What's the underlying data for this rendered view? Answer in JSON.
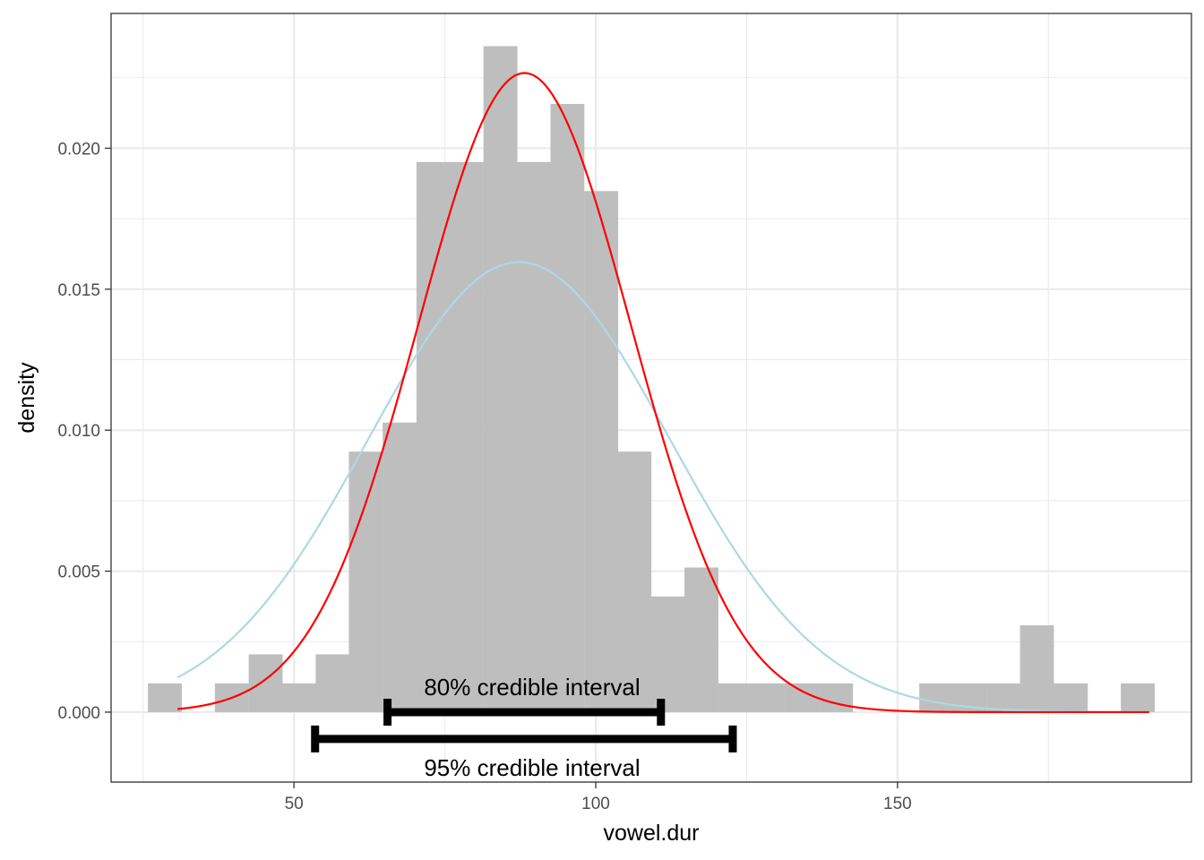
{
  "chart_data": {
    "type": "bar",
    "xlabel": "vowel.dur",
    "ylabel": "density",
    "xlim": [
      19.7,
      198.7
    ],
    "ylim": [
      -0.00248,
      0.02478
    ],
    "x_ticks": [
      50,
      100,
      150
    ],
    "x_tick_labels": [
      "50",
      "100",
      "150"
    ],
    "x_minor_ticks": [
      25,
      75,
      125,
      175
    ],
    "y_ticks": [
      0.0,
      0.005,
      0.01,
      0.015,
      0.02
    ],
    "y_tick_labels": [
      "0.000",
      "0.005",
      "0.010",
      "0.015",
      "0.020"
    ],
    "y_minor_ticks": [
      -0.0025,
      0.0025,
      0.0075,
      0.0125,
      0.0175,
      0.0225
    ],
    "grid": true,
    "histogram": {
      "bin_width": 5.56,
      "bin_starts": [
        25.8,
        31.4,
        36.9,
        42.5,
        48.0,
        53.6,
        59.1,
        64.7,
        70.3,
        75.8,
        81.4,
        86.9,
        92.5,
        98.1,
        103.6,
        109.2,
        114.7,
        120.3,
        125.8,
        131.4,
        137.0,
        142.5,
        148.1,
        153.6,
        159.2,
        164.8,
        170.3,
        175.9,
        181.4,
        187.0
      ],
      "densities": [
        0.00102,
        0,
        0.00102,
        0.00205,
        0.00102,
        0.00205,
        0.00924,
        0.01027,
        0.01951,
        0.01951,
        0.02362,
        0.01951,
        0.02157,
        0.01848,
        0.00924,
        0.0041,
        0.00513,
        0.00102,
        0.00102,
        0.00102,
        0.00102,
        0,
        0,
        0.00102,
        0.00102,
        0.00102,
        0.00308,
        0.00102,
        0,
        0.00102
      ],
      "color": "#bebebe"
    },
    "series": [
      {
        "mean": 87.3,
        "sd": 25.0,
        "x_range": [
          30.7,
          191.7
        ],
        "color": "#add8e6"
      },
      {
        "mean": 88.2,
        "sd": 17.6,
        "x_range": [
          30.7,
          191.7
        ],
        "color": "#ff0000"
      }
    ],
    "intervals": [
      {
        "label": "80% credible interval",
        "lower": 65.5,
        "upper": 110.8,
        "y": 0.0,
        "label_position": "above"
      },
      {
        "label": "95% credible interval",
        "lower": 53.5,
        "upper": 122.7,
        "y": -0.00095,
        "label_position": "below"
      }
    ]
  }
}
